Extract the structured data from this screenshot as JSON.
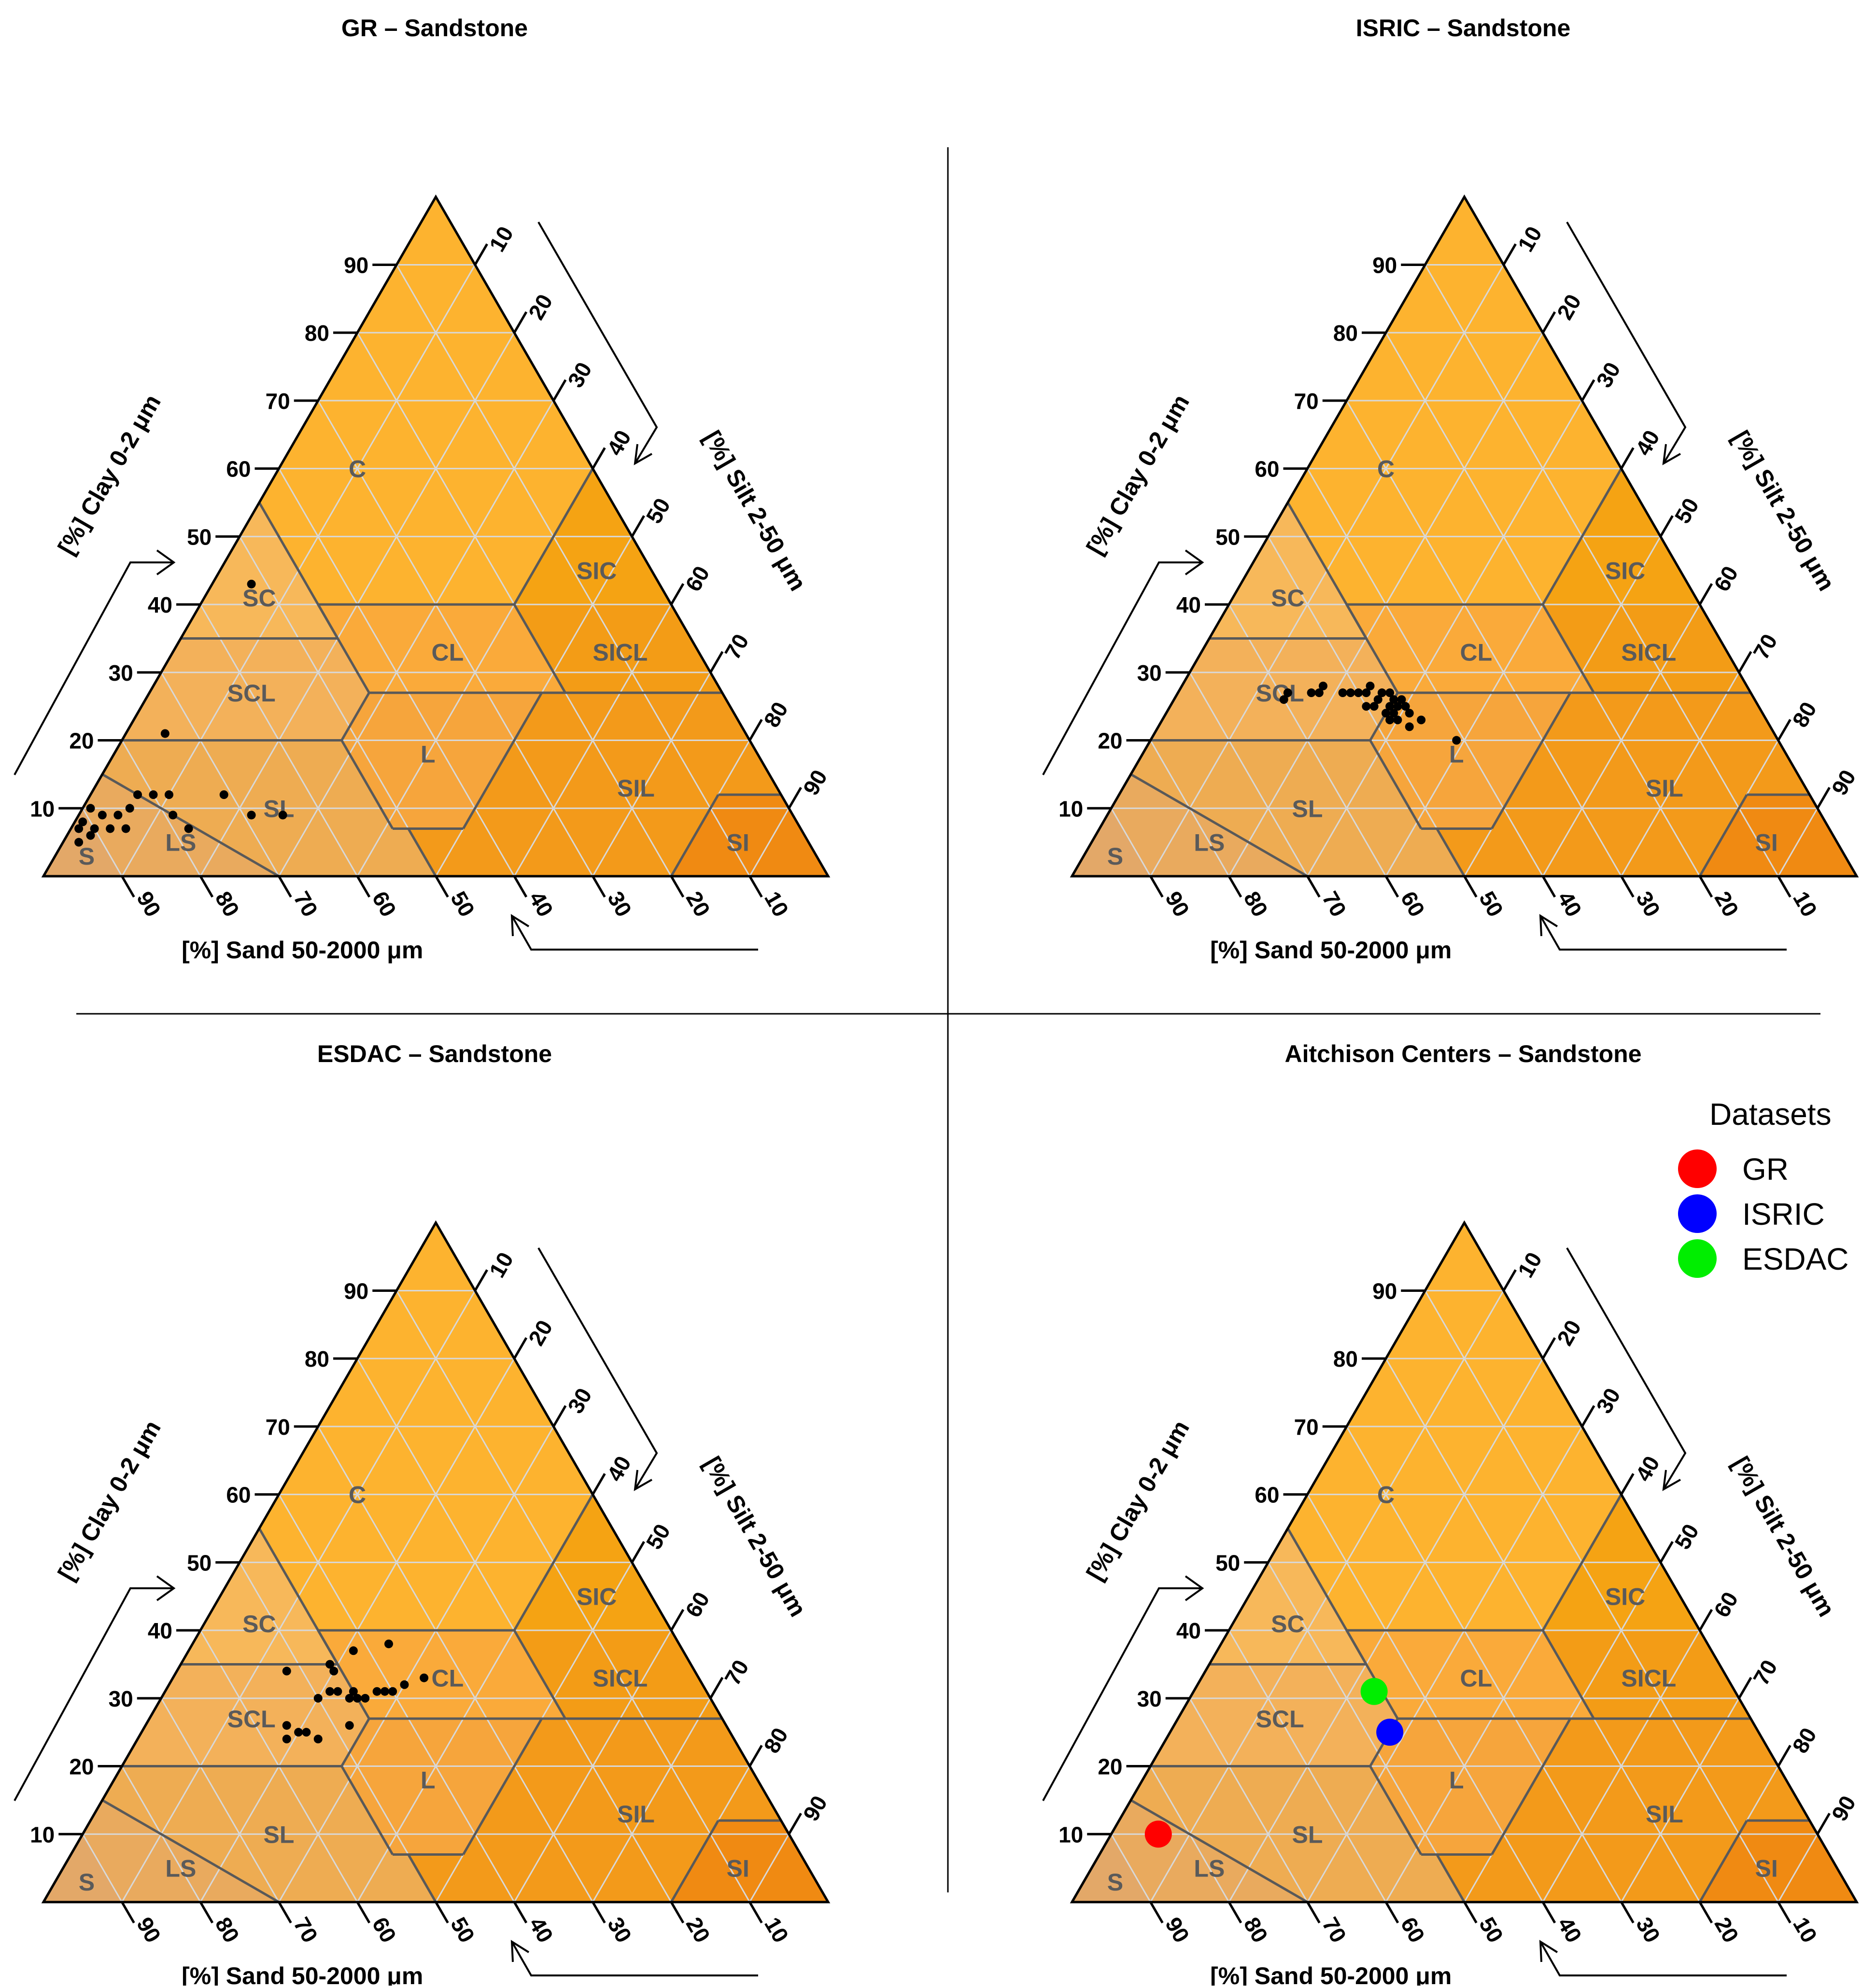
{
  "figure": {
    "class_labels": [
      "C",
      "SIC",
      "SC",
      "CL",
      "SICL",
      "SCL",
      "L",
      "SIL",
      "SL",
      "LS",
      "S",
      "SI"
    ],
    "clay_axis_label": "[%] Clay 0-2 μm",
    "silt_axis_label": "[%] Silt 2-50 μm",
    "sand_axis_label": "[%] Sand 50-2000 μm",
    "tick_labels": [
      "10",
      "20",
      "30",
      "40",
      "50",
      "60",
      "70",
      "80",
      "90"
    ],
    "colors": {
      "C": "#FDB32F",
      "SIC": "#F5A313",
      "SC": "#F7B85A",
      "CL": "#FAAA3A",
      "SICL": "#F39C16",
      "SCL": "#F3B15A",
      "L": "#F6A53C",
      "SIL": "#F39A1A",
      "SL": "#EEAC52",
      "LS": "#E9AA5E",
      "S": "#E3A868",
      "SI": "#F08A12",
      "boundary": "#595959",
      "grid": "#D8D8D8",
      "outline": "#000000",
      "point": "#000000"
    }
  },
  "legend": {
    "title": "Datasets",
    "items": [
      {
        "label": "GR",
        "color": "#FF0000"
      },
      {
        "label": "ISRIC",
        "color": "#0000FF"
      },
      {
        "label": "ESDAC",
        "color": "#00EE00"
      }
    ]
  },
  "chart_data": [
    {
      "type": "scatter",
      "title": "GR – Sandstone",
      "points": [
        {
          "sand": 52,
          "silt": 5,
          "clay": 43
        },
        {
          "sand": 74,
          "silt": 5,
          "clay": 21
        },
        {
          "sand": 78,
          "silt": 10,
          "clay": 12
        },
        {
          "sand": 80,
          "silt": 8,
          "clay": 12
        },
        {
          "sand": 82,
          "silt": 6,
          "clay": 12
        },
        {
          "sand": 84,
          "silt": 6,
          "clay": 10
        },
        {
          "sand": 86,
          "silt": 5,
          "clay": 9
        },
        {
          "sand": 88,
          "silt": 3,
          "clay": 9
        },
        {
          "sand": 90,
          "silt": 3,
          "clay": 7
        },
        {
          "sand": 91,
          "silt": 1,
          "clay": 8
        },
        {
          "sand": 92,
          "silt": 1,
          "clay": 7
        },
        {
          "sand": 91,
          "silt": 3,
          "clay": 6
        },
        {
          "sand": 93,
          "silt": 2,
          "clay": 5
        },
        {
          "sand": 88,
          "silt": 5,
          "clay": 7
        },
        {
          "sand": 79,
          "silt": 12,
          "clay": 9
        },
        {
          "sand": 78,
          "silt": 15,
          "clay": 7
        },
        {
          "sand": 71,
          "silt": 17,
          "clay": 12
        },
        {
          "sand": 69,
          "silt": 22,
          "clay": 9
        },
        {
          "sand": 65,
          "silt": 26,
          "clay": 9
        },
        {
          "sand": 89,
          "silt": 1,
          "clay": 10
        },
        {
          "sand": 86,
          "silt": 7,
          "clay": 7
        }
      ]
    },
    {
      "type": "scatter",
      "title": "ISRIC – Sandstone",
      "points": [
        {
          "sand": 60,
          "silt": 14,
          "clay": 26
        },
        {
          "sand": 59,
          "silt": 14,
          "clay": 27
        },
        {
          "sand": 56,
          "silt": 17,
          "clay": 27
        },
        {
          "sand": 55,
          "silt": 18,
          "clay": 27
        },
        {
          "sand": 54,
          "silt": 18,
          "clay": 28
        },
        {
          "sand": 52,
          "silt": 21,
          "clay": 27
        },
        {
          "sand": 51,
          "silt": 22,
          "clay": 27
        },
        {
          "sand": 50,
          "silt": 23,
          "clay": 27
        },
        {
          "sand": 49,
          "silt": 24,
          "clay": 27
        },
        {
          "sand": 48,
          "silt": 24,
          "clay": 28
        },
        {
          "sand": 47,
          "silt": 26,
          "clay": 27
        },
        {
          "sand": 46,
          "silt": 28,
          "clay": 26
        },
        {
          "sand": 45,
          "silt": 29,
          "clay": 26
        },
        {
          "sand": 48,
          "silt": 26,
          "clay": 26
        },
        {
          "sand": 49,
          "silt": 26,
          "clay": 25
        },
        {
          "sand": 47,
          "silt": 28,
          "clay": 25
        },
        {
          "sand": 46,
          "silt": 29,
          "clay": 25
        },
        {
          "sand": 48,
          "silt": 28,
          "clay": 24
        },
        {
          "sand": 47,
          "silt": 30,
          "clay": 23
        },
        {
          "sand": 46,
          "silt": 32,
          "clay": 22
        },
        {
          "sand": 48,
          "silt": 29,
          "clay": 23
        },
        {
          "sand": 45,
          "silt": 31,
          "clay": 24
        },
        {
          "sand": 44,
          "silt": 33,
          "clay": 23
        },
        {
          "sand": 50,
          "silt": 25,
          "clay": 25
        },
        {
          "sand": 47,
          "silt": 29,
          "clay": 24
        },
        {
          "sand": 46,
          "silt": 27,
          "clay": 27
        },
        {
          "sand": 45,
          "silt": 30,
          "clay": 25
        },
        {
          "sand": 41,
          "silt": 39,
          "clay": 20
        }
      ]
    },
    {
      "type": "scatter",
      "title": "ESDAC – Sandstone",
      "points": [
        {
          "sand": 52,
          "silt": 14,
          "clay": 34
        },
        {
          "sand": 50,
          "silt": 20,
          "clay": 30
        },
        {
          "sand": 48,
          "silt": 21,
          "clay": 31
        },
        {
          "sand": 47,
          "silt": 22,
          "clay": 31
        },
        {
          "sand": 46,
          "silt": 24,
          "clay": 30
        },
        {
          "sand": 45,
          "silt": 24,
          "clay": 31
        },
        {
          "sand": 44,
          "silt": 26,
          "clay": 30
        },
        {
          "sand": 42,
          "silt": 27,
          "clay": 31
        },
        {
          "sand": 41,
          "silt": 28,
          "clay": 31
        },
        {
          "sand": 40,
          "silt": 29,
          "clay": 31
        },
        {
          "sand": 38,
          "silt": 30,
          "clay": 32
        },
        {
          "sand": 35,
          "silt": 32,
          "clay": 33
        },
        {
          "sand": 46,
          "silt": 19,
          "clay": 35
        },
        {
          "sand": 46,
          "silt": 20,
          "clay": 34
        },
        {
          "sand": 42,
          "silt": 21,
          "clay": 37
        },
        {
          "sand": 37,
          "silt": 25,
          "clay": 38
        },
        {
          "sand": 56,
          "silt": 18,
          "clay": 26
        },
        {
          "sand": 55,
          "silt": 20,
          "clay": 25
        },
        {
          "sand": 54,
          "silt": 21,
          "clay": 25
        },
        {
          "sand": 57,
          "silt": 19,
          "clay": 24
        },
        {
          "sand": 53,
          "silt": 23,
          "clay": 24
        },
        {
          "sand": 48,
          "silt": 26,
          "clay": 26
        },
        {
          "sand": 45,
          "silt": 25,
          "clay": 30
        }
      ]
    },
    {
      "type": "scatter",
      "title": "Aitchison Centers – Sandstone",
      "series": [
        {
          "name": "GR",
          "points": [
            {
              "sand": 84,
              "silt": 6,
              "clay": 10
            }
          ]
        },
        {
          "name": "ISRIC",
          "points": [
            {
              "sand": 47,
              "silt": 28,
              "clay": 25
            }
          ]
        },
        {
          "name": "ESDAC",
          "points": [
            {
              "sand": 46,
              "silt": 23,
              "clay": 31
            }
          ]
        }
      ]
    }
  ]
}
